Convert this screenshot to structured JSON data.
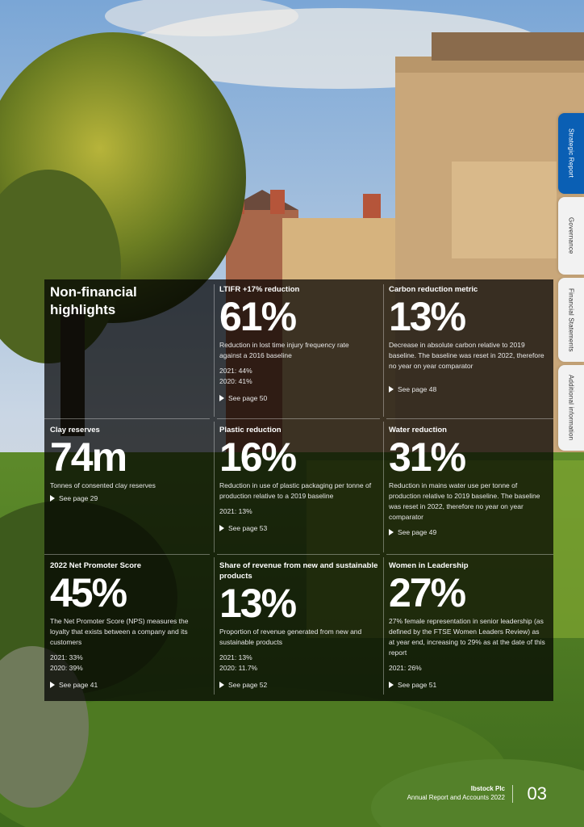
{
  "side_tabs": [
    {
      "label": "Strategic Report",
      "active": true
    },
    {
      "label": "Governance",
      "active": false
    },
    {
      "label": "Financial Statements",
      "active": false
    },
    {
      "label": "Additional information",
      "active": false
    }
  ],
  "heading": "Non-financial highlights",
  "cells": {
    "ltifr": {
      "title": "LTIFR +17% reduction",
      "value": "61%",
      "desc": "Reduction in lost time injury frequency rate against a 2016 baseline",
      "history": [
        "2021: 44%",
        "2020: 41%"
      ],
      "see": "See page 50"
    },
    "carbon": {
      "title": "Carbon reduction metric",
      "value": "13%",
      "desc": "Decrease in absolute carbon relative to 2019 baseline. The baseline was reset in 2022, therefore no year on year comparator",
      "see": "See page 48"
    },
    "clay": {
      "title": "Clay reserves",
      "value": "74m",
      "desc": "Tonnes of consented clay reserves",
      "see": "See page 29"
    },
    "plastic": {
      "title": "Plastic reduction",
      "value": "16%",
      "desc": "Reduction in use of plastic packaging per tonne of production relative to a 2019 baseline",
      "history": [
        "2021: 13%"
      ],
      "see": "See page 53"
    },
    "water": {
      "title": "Water reduction",
      "value": "31%",
      "desc": "Reduction in mains water use per tonne of production relative to 2019 baseline. The baseline was reset in 2022, therefore no year on year comparator",
      "see": "See page 49"
    },
    "nps": {
      "title": "2022 Net Promoter Score",
      "value": "45%",
      "desc": "The Net Promoter Score (NPS) measures the loyalty that exists between a company and its customers",
      "history": [
        "2021: 33%",
        "2020: 39%"
      ],
      "see": "See page 41"
    },
    "revenue": {
      "title": "Share of revenue from new and sustainable products",
      "value": "13%",
      "desc": "Proportion of revenue generated from new and sustainable products",
      "history": [
        "2021: 13%",
        "2020: 11.7%"
      ],
      "see": "See page 52"
    },
    "women": {
      "title": "Women in Leadership",
      "value": "27%",
      "desc": "27% female representation in senior leadership (as defined by the FTSE Women Leaders Review) as at year end, increasing to 29% as at the date of this report",
      "history": [
        "2021: 26%"
      ],
      "see": "See page 51"
    }
  },
  "footer": {
    "company": "Ibstock Plc",
    "report": "Annual Report and Accounts 2022",
    "page": "03"
  },
  "colors": {
    "accent": "#0a5fb4",
    "panel": "#000000",
    "text": "#ffffff"
  }
}
